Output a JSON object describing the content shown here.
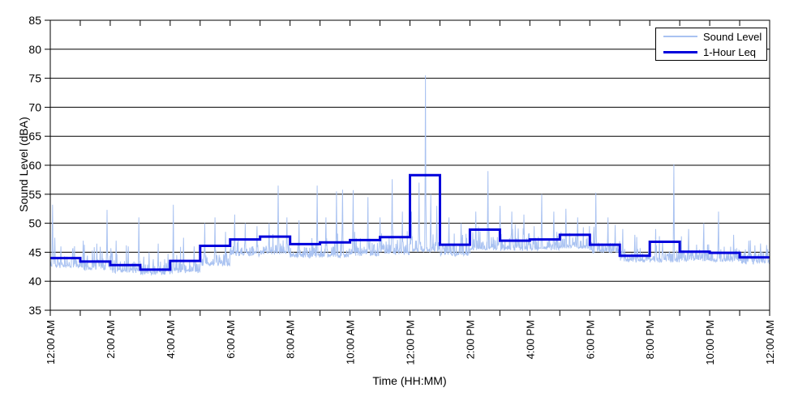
{
  "chart_data": {
    "type": "line",
    "title": "",
    "xlabel": "Time (HH:MM)",
    "ylabel": "Sound Level (dBA)",
    "ylim": [
      35,
      85
    ],
    "y_ticks": [
      35,
      40,
      45,
      50,
      55,
      60,
      65,
      70,
      75,
      80,
      85
    ],
    "x_span_hours": 24,
    "x_major_tick_every_hours": 2,
    "x_minor_tick_every_hours": 1,
    "x_tick_labels": [
      "12:00 AM",
      "2:00 AM",
      "4:00 AM",
      "6:00 AM",
      "8:00 AM",
      "10:00 AM",
      "12:00 PM",
      "2:00 PM",
      "4:00 PM",
      "6:00 PM",
      "8:00 PM",
      "10:00 PM",
      "12:00 AM"
    ],
    "grid": "horizontal-solid-black-every-5-dBA",
    "legend_position": "top-right-inside",
    "axis_color": "#000000",
    "background_color": "#ffffff",
    "series": [
      {
        "name": "Sound Level",
        "style": "noisy-line",
        "color": "#a9c2f1",
        "line_width": 1,
        "hourly_base_dba": [
          42.3,
          41.9,
          41.4,
          41.1,
          41.4,
          42.6,
          44.3,
          44.6,
          44.0,
          44.0,
          44.3,
          44.6,
          45.0,
          44.3,
          45.3,
          45.2,
          45.3,
          45.6,
          44.8,
          43.3,
          43.2,
          43.4,
          43.3,
          42.9
        ],
        "spikes_hour_dba": [
          [
            0.08,
            53.2
          ],
          [
            0.15,
            47.5
          ],
          [
            0.35,
            46.0
          ],
          [
            0.75,
            45.5
          ],
          [
            1.1,
            47.0
          ],
          [
            1.55,
            46.5
          ],
          [
            1.9,
            52.3
          ],
          [
            2.2,
            47.0
          ],
          [
            2.6,
            46.0
          ],
          [
            2.95,
            51.0
          ],
          [
            3.3,
            45.0
          ],
          [
            3.6,
            46.5
          ],
          [
            4.1,
            53.2
          ],
          [
            4.45,
            47.5
          ],
          [
            4.8,
            46.0
          ],
          [
            5.15,
            50.0
          ],
          [
            5.5,
            51.0
          ],
          [
            5.85,
            48.5
          ],
          [
            6.15,
            51.5
          ],
          [
            6.5,
            50.0
          ],
          [
            6.9,
            49.5
          ],
          [
            7.3,
            50.0
          ],
          [
            7.6,
            56.5
          ],
          [
            7.9,
            51.0
          ],
          [
            8.3,
            50.5
          ],
          [
            8.9,
            56.5
          ],
          [
            9.2,
            51.0
          ],
          [
            9.55,
            55.5
          ],
          [
            9.75,
            55.8
          ],
          [
            10.1,
            55.7
          ],
          [
            10.6,
            54.5
          ],
          [
            11.0,
            51.0
          ],
          [
            11.4,
            57.6
          ],
          [
            11.75,
            52.0
          ],
          [
            12.05,
            52.0
          ],
          [
            12.3,
            57.0
          ],
          [
            12.52,
            75.5
          ],
          [
            12.7,
            55.0
          ],
          [
            12.9,
            53.0
          ],
          [
            13.3,
            51.0
          ],
          [
            13.7,
            50.0
          ],
          [
            14.2,
            52.0
          ],
          [
            14.6,
            59.0
          ],
          [
            15.0,
            53.0
          ],
          [
            15.4,
            52.0
          ],
          [
            15.8,
            51.5
          ],
          [
            16.4,
            55.0
          ],
          [
            16.8,
            52.0
          ],
          [
            17.2,
            52.5
          ],
          [
            17.6,
            51.0
          ],
          [
            18.2,
            55.3
          ],
          [
            18.6,
            51.0
          ],
          [
            19.1,
            49.0
          ],
          [
            19.5,
            48.0
          ],
          [
            20.2,
            49.0
          ],
          [
            20.8,
            60.2
          ],
          [
            21.3,
            49.0
          ],
          [
            21.8,
            50.0
          ],
          [
            22.3,
            52.0
          ],
          [
            22.8,
            48.0
          ],
          [
            23.3,
            47.0
          ],
          [
            23.7,
            46.5
          ]
        ]
      },
      {
        "name": "1-Hour Leq",
        "style": "step-hourly",
        "color": "#0000db",
        "line_width": 3,
        "values": [
          44.0,
          43.4,
          42.8,
          42.0,
          43.5,
          46.1,
          47.2,
          47.7,
          46.4,
          46.7,
          47.1,
          47.6,
          58.3,
          46.3,
          48.9,
          47.0,
          47.2,
          48.0,
          46.3,
          44.4,
          46.8,
          45.1,
          44.9,
          44.1
        ]
      }
    ]
  }
}
